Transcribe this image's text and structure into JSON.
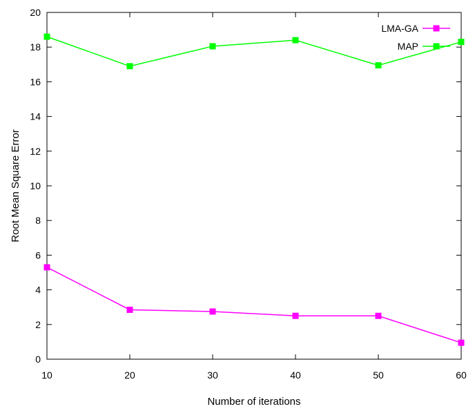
{
  "chart_data": {
    "type": "line",
    "title": "",
    "xlabel": "Number of iterations",
    "ylabel": "Root Mean Square Error",
    "x": [
      10,
      20,
      30,
      40,
      50,
      60
    ],
    "xlim": [
      10,
      60
    ],
    "ylim": [
      0,
      20
    ],
    "xticks": [
      10,
      20,
      30,
      40,
      50,
      60
    ],
    "yticks": [
      0,
      2,
      4,
      6,
      8,
      10,
      12,
      14,
      16,
      18,
      20
    ],
    "grid": false,
    "legend_position": "top-right",
    "series": [
      {
        "name": "LMA-GA",
        "color": "#ff00ff",
        "marker": "square",
        "values": [
          5.3,
          2.85,
          2.75,
          2.5,
          2.5,
          0.95
        ]
      },
      {
        "name": "MAP",
        "color": "#00ff00",
        "marker": "square",
        "values": [
          18.6,
          16.9,
          18.05,
          18.4,
          16.95,
          18.3
        ]
      }
    ]
  }
}
